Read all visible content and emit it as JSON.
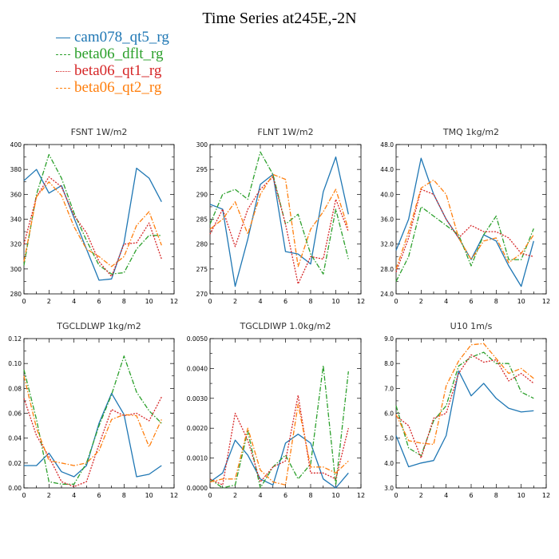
{
  "title": "Time Series at245E,-2N",
  "colors": {
    "cam078": "#1f77b4",
    "dflt": "#2ca02c",
    "qt1": "#d62728",
    "qt2": "#ff7f0e"
  },
  "legend": [
    {
      "label": "cam078_qt5_rg",
      "color": "#1f77b4",
      "style": "solid"
    },
    {
      "label": "beta06_dflt_rg",
      "color": "#2ca02c",
      "style": "dash"
    },
    {
      "label": "beta06_qt1_rg",
      "color": "#d62728",
      "style": "dot"
    },
    {
      "label": "beta06_qt2_rg",
      "color": "#ff7f0e",
      "style": "dash"
    }
  ],
  "chart_data": [
    {
      "type": "line",
      "title": "FSNT   1W/m2",
      "x": [
        0,
        1,
        2,
        3,
        4,
        5,
        6,
        7,
        8,
        9,
        10,
        11
      ],
      "xlim": [
        0,
        12
      ],
      "xticks": [
        "0",
        "2",
        "4",
        "6",
        "8",
        "10",
        "12"
      ],
      "ylim": [
        280,
        400
      ],
      "yticks": [
        "280",
        "300",
        "320",
        "340",
        "360",
        "380",
        "400"
      ],
      "series": [
        {
          "name": "cam078_qt5_rg",
          "values": [
            371,
            380,
            361,
            367,
            341,
            316,
            291,
            292,
            321,
            381,
            373,
            354
          ]
        },
        {
          "name": "beta06_dflt_rg",
          "values": [
            303,
            360,
            392,
            373,
            345,
            323,
            303,
            296,
            297,
            316,
            327,
            327
          ]
        },
        {
          "name": "beta06_qt1_rg",
          "values": [
            320,
            358,
            374,
            366,
            343,
            329,
            306,
            294,
            320,
            321,
            337,
            308
          ]
        },
        {
          "name": "beta06_qt2_rg",
          "values": [
            306,
            358,
            370,
            359,
            334,
            316,
            310,
            302,
            310,
            335,
            346,
            319
          ]
        }
      ]
    },
    {
      "type": "line",
      "title": "FLNT   1W/m2",
      "x": [
        0,
        1,
        2,
        3,
        4,
        5,
        6,
        7,
        8,
        9,
        10,
        11
      ],
      "xlim": [
        0,
        12
      ],
      "xticks": [
        "0",
        "2",
        "4",
        "6",
        "8",
        "10",
        "12"
      ],
      "ylim": [
        270,
        300
      ],
      "yticks": [
        "270",
        "275",
        "280",
        "285",
        "290",
        "295",
        "300"
      ],
      "series": [
        {
          "name": "cam078_qt5_rg",
          "values": [
            288,
            287,
            271.5,
            281,
            292,
            294,
            278.5,
            278,
            276,
            290.5,
            297.5,
            286
          ]
        },
        {
          "name": "beta06_dflt_rg",
          "values": [
            284,
            290,
            291,
            289,
            298.5,
            294,
            284,
            286,
            278,
            274,
            287,
            277
          ]
        },
        {
          "name": "beta06_qt1_rg",
          "values": [
            282,
            287,
            279.5,
            287,
            291,
            293.5,
            284,
            272,
            277.5,
            277,
            289,
            282.5
          ]
        },
        {
          "name": "beta06_qt2_rg",
          "values": [
            283,
            285,
            288.5,
            282,
            290,
            294,
            293,
            275.5,
            283,
            286.5,
            291,
            283
          ]
        }
      ]
    },
    {
      "type": "line",
      "title": "TMQ   1kg/m2",
      "x": [
        0,
        1,
        2,
        3,
        4,
        5,
        6,
        7,
        8,
        9,
        10,
        11
      ],
      "xlim": [
        0,
        12
      ],
      "xticks": [
        "0",
        "2",
        "4",
        "6",
        "8",
        "10",
        "12"
      ],
      "ylim": [
        24,
        48
      ],
      "yticks": [
        "24.0",
        "28.0",
        "32.0",
        "36.0",
        "40.0",
        "44.0",
        "48.0"
      ],
      "series": [
        {
          "name": "cam078_qt5_rg",
          "values": [
            31,
            36,
            45.8,
            40,
            36,
            33,
            29.5,
            33.5,
            32.5,
            28.5,
            25.2,
            32.5
          ]
        },
        {
          "name": "beta06_dflt_rg",
          "values": [
            26,
            30,
            38,
            36.5,
            35,
            33.5,
            28.5,
            33.5,
            36.5,
            29.5,
            29.5,
            34.5
          ]
        },
        {
          "name": "beta06_qt1_rg",
          "values": [
            27.5,
            33,
            40.8,
            40,
            36,
            33,
            35,
            34,
            34,
            33,
            30.5,
            30
          ]
        },
        {
          "name": "beta06_qt2_rg",
          "values": [
            28,
            34,
            41,
            42.3,
            40,
            33,
            29.5,
            32.5,
            33,
            29,
            30.5,
            33.5
          ]
        }
      ]
    },
    {
      "type": "line",
      "title": "TGCLDLWP   1kg/m2",
      "x": [
        0,
        1,
        2,
        3,
        4,
        5,
        6,
        7,
        8,
        9,
        10,
        11
      ],
      "xlim": [
        0,
        12
      ],
      "xticks": [
        "0",
        "2",
        "4",
        "6",
        "8",
        "10",
        "12"
      ],
      "ylim": [
        0,
        0.12
      ],
      "yticks": [
        "0.00",
        "0.02",
        "0.04",
        "0.06",
        "0.08",
        "0.10",
        "0.12"
      ],
      "series": [
        {
          "name": "cam078_qt5_rg",
          "values": [
            0.018,
            0.018,
            0.028,
            0.013,
            0.009,
            0.018,
            0.052,
            0.076,
            0.059,
            0.009,
            0.011,
            0.018
          ]
        },
        {
          "name": "beta06_dflt_rg",
          "values": [
            0.095,
            0.055,
            0.005,
            0.003,
            0.003,
            0.02,
            0.05,
            0.075,
            0.106,
            0.077,
            0.062,
            0.052
          ]
        },
        {
          "name": "beta06_qt1_rg",
          "values": [
            0.072,
            0.042,
            0.025,
            0.005,
            0.001,
            0.005,
            0.035,
            0.063,
            0.058,
            0.06,
            0.054,
            0.073
          ]
        },
        {
          "name": "beta06_qt2_rg",
          "values": [
            0.09,
            0.048,
            0.022,
            0.02,
            0.018,
            0.02,
            0.03,
            0.055,
            0.059,
            0.058,
            0.033,
            0.055
          ]
        }
      ]
    },
    {
      "type": "line",
      "title": "TGCLDIWP   1.0kg/m2",
      "x": [
        0,
        1,
        2,
        3,
        4,
        5,
        6,
        7,
        8,
        9,
        10,
        11
      ],
      "xlim": [
        0,
        12
      ],
      "xticks": [
        "0",
        "2",
        "4",
        "6",
        "8",
        "10",
        "12"
      ],
      "ylim": [
        0,
        0.005
      ],
      "yticks": [
        "0.0000",
        "0.0010",
        "0.0020",
        "0.0030",
        "0.0040",
        "0.0050"
      ],
      "series": [
        {
          "name": "cam078_qt5_rg",
          "values": [
            0.0002,
            0.0005,
            0.0016,
            0.0011,
            0.0003,
            0.0001,
            0.0015,
            0.0018,
            0.0015,
            0.0003,
            0.0,
            0.0005
          ]
        },
        {
          "name": "beta06_dflt_rg",
          "values": [
            0.0003,
            0.0,
            0.0001,
            0.0019,
            0.0,
            0.0007,
            0.0011,
            0.0003,
            0.0008,
            0.0041,
            0.0001,
            0.0039
          ]
        },
        {
          "name": "beta06_qt1_rg",
          "values": [
            0.0003,
            0.0001,
            0.0025,
            0.0016,
            0.0002,
            0.0007,
            0.0009,
            0.0031,
            0.0005,
            0.0005,
            0.0003,
            0.002
          ]
        },
        {
          "name": "beta06_qt2_rg",
          "values": [
            0.0002,
            0.0003,
            0.0003,
            0.002,
            0.0006,
            0.0002,
            0.0001,
            0.0028,
            0.0007,
            0.0007,
            0.0005,
            0.0009
          ]
        }
      ]
    },
    {
      "type": "line",
      "title": "U10   1m/s",
      "x": [
        0,
        1,
        2,
        3,
        4,
        5,
        6,
        7,
        8,
        9,
        10,
        11
      ],
      "xlim": [
        0,
        12
      ],
      "xticks": [
        "0",
        "2",
        "4",
        "6",
        "8",
        "10",
        "12"
      ],
      "ylim": [
        3,
        9
      ],
      "yticks": [
        "3.0",
        "4.0",
        "5.0",
        "6.0",
        "7.0",
        "8.0",
        "9.0"
      ],
      "series": [
        {
          "name": "cam078_qt5_rg",
          "values": [
            5.1,
            3.85,
            4.0,
            4.1,
            5.1,
            7.7,
            6.7,
            7.2,
            6.6,
            6.2,
            6.05,
            6.1
          ]
        },
        {
          "name": "beta06_dflt_rg",
          "values": [
            6.3,
            4.6,
            4.3,
            5.7,
            6.3,
            7.9,
            8.25,
            8.45,
            8.0,
            8.0,
            6.85,
            6.6
          ]
        },
        {
          "name": "beta06_qt1_rg",
          "values": [
            5.9,
            5.5,
            4.2,
            5.8,
            6.0,
            7.6,
            8.35,
            8.05,
            8.15,
            7.3,
            7.6,
            7.2
          ]
        },
        {
          "name": "beta06_qt2_rg",
          "values": [
            5.95,
            4.9,
            4.8,
            4.75,
            7.1,
            8.1,
            8.75,
            8.8,
            8.2,
            7.6,
            7.8,
            7.4
          ]
        }
      ]
    }
  ]
}
